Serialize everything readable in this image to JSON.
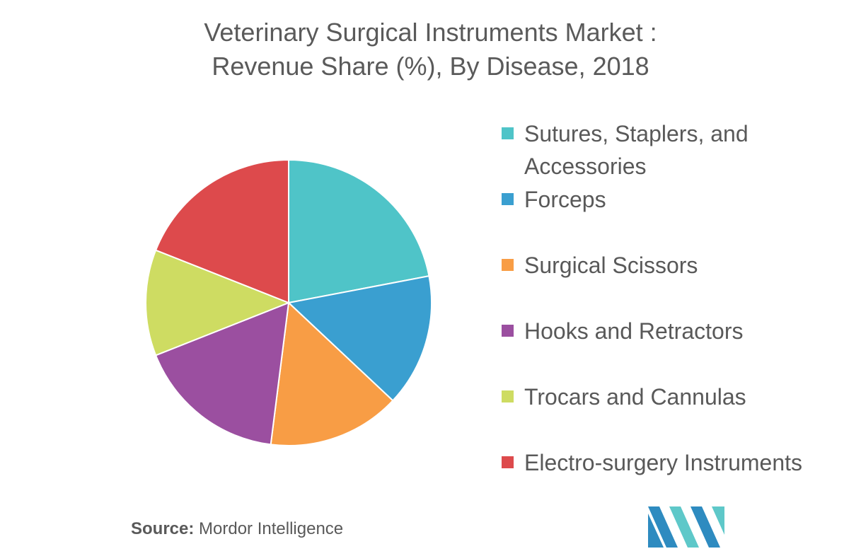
{
  "title_line1": "Veterinary Surgical Instruments Market :",
  "title_line2": "Revenue Share (%), By Disease, 2018",
  "chart_data": {
    "type": "pie",
    "title": "Veterinary Surgical Instruments Market : Revenue Share (%), By Disease, 2018",
    "categories": [
      "Sutures, Staplers, and Accessories",
      "Forceps",
      "Surgical Scissors",
      "Hooks and Retractors",
      "Trocars and Cannulas",
      "Electro-surgery Instruments"
    ],
    "values": [
      22,
      15,
      15,
      17,
      12,
      19
    ],
    "colors": [
      "#4fc4c8",
      "#3a9fd0",
      "#f89d45",
      "#9b4fa0",
      "#cedc62",
      "#dd4a4c"
    ],
    "legend_position": "right"
  },
  "legend": [
    {
      "label_lines": [
        "Sutures, Staplers, and",
        "Accessories"
      ],
      "color": "#4fc4c8"
    },
    {
      "label_lines": [
        "Forceps"
      ],
      "color": "#3a9fd0"
    },
    {
      "label_lines": [
        "Surgical Scissors"
      ],
      "color": "#f89d45"
    },
    {
      "label_lines": [
        "Hooks and Retractors"
      ],
      "color": "#9b4fa0"
    },
    {
      "label_lines": [
        "Trocars and Cannulas"
      ],
      "color": "#cedc62"
    },
    {
      "label_lines": [
        "Electro-surgery Instruments"
      ],
      "color": "#dd4a4c"
    }
  ],
  "source_label": "Source:",
  "source_text": " Mordor Intelligence",
  "logo": {
    "icon": "mordor-intelligence-logo",
    "colors": [
      "#2e8bc0",
      "#5ec8c9"
    ]
  }
}
